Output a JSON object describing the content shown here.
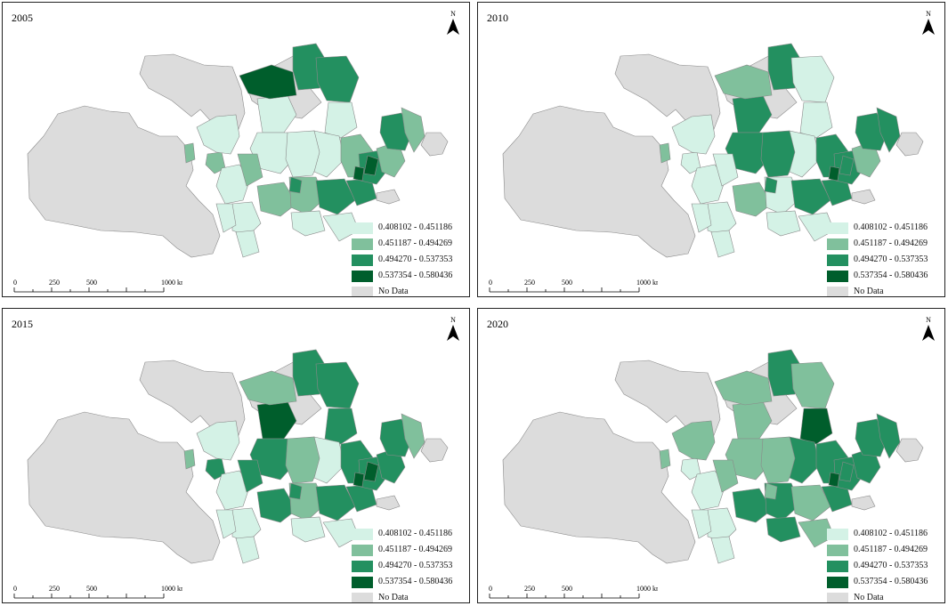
{
  "title_labels": {
    "north": "N"
  },
  "panels": [
    {
      "year": "2005"
    },
    {
      "year": "2010"
    },
    {
      "year": "2015"
    },
    {
      "year": "2020"
    }
  ],
  "legend": [
    {
      "label": "0.408102 - 0.451186",
      "color": "#d4f2e6"
    },
    {
      "label": "0.451187 - 0.494269",
      "color": "#80c09c"
    },
    {
      "label": "0.494270 - 0.537353",
      "color": "#239060"
    },
    {
      "label": "0.537354 - 0.580436",
      "color": "#005e2c"
    },
    {
      "label": "No Data",
      "color": "#dcdcdc"
    }
  ],
  "scale": {
    "ticks": [
      "0",
      "250",
      "500",
      "1000 km"
    ]
  },
  "colors": {
    "no_data": "#dcdcdc",
    "border": "#8a8a8a",
    "frame": "#222222"
  }
}
